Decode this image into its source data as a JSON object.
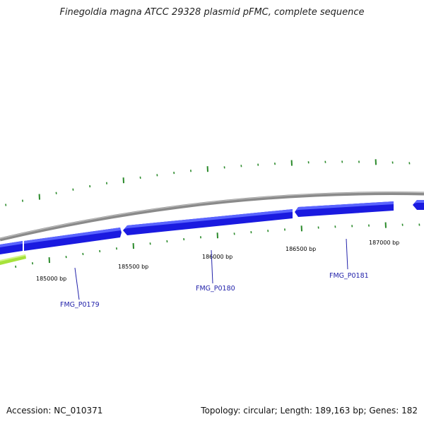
{
  "header": {
    "title": "Finegoldia magna ATCC 29328 plasmid pFMC, complete sequence"
  },
  "footer": {
    "accession": "Accession: NC_010371",
    "summary": "Topology: circular; Length: 189,163 bp; Genes: 182"
  },
  "colors": {
    "backbone": "#8a8a8a",
    "gene_forward": "#1a1ae0",
    "gene_highlight": "#5a64ff",
    "gene_other": "#a6e23a",
    "ticks": "#2a8a2a",
    "label_line": "#2222aa"
  },
  "scale": {
    "labels": [
      {
        "text": "185000 bp"
      },
      {
        "text": "185500 bp"
      },
      {
        "text": "186000 bp"
      },
      {
        "text": "186500 bp"
      },
      {
        "text": "187000 bp"
      }
    ]
  },
  "genes": [
    {
      "name": "FMG_P0179"
    },
    {
      "name": "FMG_P0180"
    },
    {
      "name": "FMG_P0181"
    }
  ]
}
